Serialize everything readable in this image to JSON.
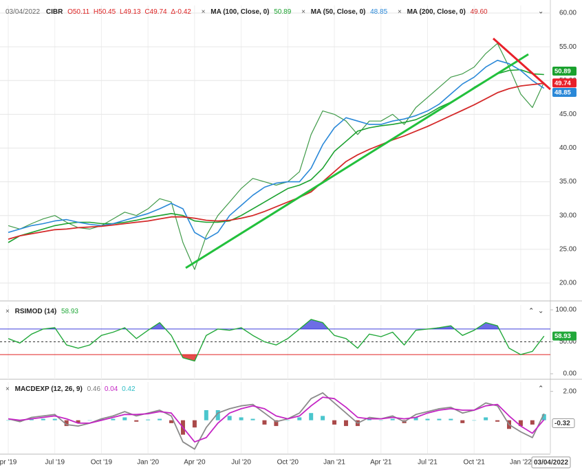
{
  "chart_data": [
    {
      "type": "line",
      "date": "03/04/2022",
      "symbol": "CIBR",
      "ohlc": [
        "O50.11",
        "H50.45",
        "L49.13",
        "C49.74",
        "Δ-0.42"
      ],
      "close_label": "49.74",
      "categories": [
        "pr '19",
        null,
        null,
        null,
        "Jul '19",
        null,
        null,
        null,
        "Oct '19",
        null,
        null,
        null,
        "Jan '20",
        null,
        null,
        null,
        "Apr '20",
        null,
        null,
        null,
        "Jul '20",
        null,
        null,
        null,
        "Oct '20",
        null,
        null,
        null,
        "Jan '21",
        null,
        null,
        null,
        "Apr '21",
        null,
        null,
        null,
        "Jul '21",
        null,
        null,
        null,
        "Oct '21",
        null,
        null,
        null,
        "Jan '22",
        null,
        "03/04/2022"
      ],
      "ylim": [
        17.45,
        61.12
      ],
      "yticks": [
        {
          "value": 20,
          "label": "20.00"
        },
        {
          "value": 25,
          "label": "25.00"
        },
        {
          "value": 30,
          "label": "30.00"
        },
        {
          "value": 35,
          "label": "35.00"
        },
        {
          "value": 40,
          "label": "40.00"
        },
        {
          "value": 45,
          "label": "45.00"
        },
        {
          "value": 50,
          "label": "50.00"
        },
        {
          "value": 55,
          "label": "55.00"
        },
        {
          "value": 60,
          "label": "60.00"
        }
      ],
      "grid": true,
      "series": [
        {
          "name": "CIBR",
          "color": "#3f9a48",
          "width": 1.2,
          "values": [
            28.5,
            28,
            28.8,
            29.5,
            30,
            29,
            28.2,
            28,
            28.5,
            29.5,
            30.5,
            30,
            31,
            32.5,
            32,
            26,
            22,
            27,
            30,
            32,
            34,
            35.5,
            35,
            34.5,
            35,
            36.5,
            42,
            45.5,
            45,
            44,
            42,
            44,
            44,
            45,
            43.5,
            46,
            47.5,
            49,
            50.5,
            51,
            52,
            54,
            55.5,
            52,
            48,
            46,
            49.74
          ]
        },
        {
          "name": "MA (100, Close, 0)",
          "last_label": "50.89",
          "color": "#1aa12e",
          "width": 1.6,
          "values": [
            26,
            27,
            27.5,
            28,
            28.5,
            28.8,
            29,
            29,
            28.8,
            28.8,
            29,
            29.3,
            29.7,
            30,
            30.3,
            30,
            29.2,
            29,
            29,
            29.2,
            30,
            31,
            32,
            33,
            34,
            34.5,
            35.3,
            37,
            39.5,
            41,
            42.5,
            43,
            43.3,
            43.5,
            43.8,
            44.2,
            45,
            46,
            46.8,
            47.8,
            49,
            50,
            51,
            51.5,
            51.6,
            51,
            50.89
          ]
        },
        {
          "name": "MA (50, Close, 0)",
          "last_label": "48.85",
          "color": "#2a88d8",
          "width": 1.6,
          "values": [
            27.5,
            28,
            28.5,
            28.8,
            29.2,
            29.4,
            29,
            28.7,
            28.5,
            28.8,
            29.3,
            29.8,
            30.3,
            31,
            31.8,
            31,
            27.5,
            26.5,
            27.5,
            30,
            31.5,
            33,
            34.2,
            34.8,
            35,
            35,
            37,
            40.5,
            43,
            44.5,
            44,
            43.5,
            43.5,
            44,
            44.3,
            44.8,
            45.5,
            46.5,
            48,
            49.5,
            50.5,
            52,
            53,
            52.5,
            51.5,
            50,
            48.85
          ]
        },
        {
          "name": "MA (200, Close, 0)",
          "last_label": "49.60",
          "color": "#d42a2a",
          "width": 1.8,
          "values": [
            26.5,
            27,
            27.3,
            27.6,
            27.9,
            28,
            28.2,
            28.3,
            28.4,
            28.6,
            28.8,
            29,
            29.2,
            29.5,
            29.8,
            29.8,
            29.6,
            29.3,
            29.2,
            29.3,
            29.6,
            30,
            30.6,
            31.3,
            32,
            32.7,
            33.5,
            35,
            36.5,
            38,
            39,
            39.8,
            40.5,
            41.2,
            41.8,
            42.5,
            43.2,
            44,
            44.8,
            45.6,
            46.4,
            47.3,
            48.2,
            48.8,
            49.2,
            49.4,
            49.6
          ]
        }
      ]
    },
    {
      "type": "line",
      "title": "RSIMOD (14)",
      "ylim": [
        -8.6,
        107.5
      ],
      "yticks": [
        {
          "value": 0,
          "label": "0.00"
        },
        {
          "value": 50,
          "label": "50.00"
        },
        {
          "value": 100,
          "label": "100.00"
        }
      ],
      "bands": {
        "upper": 70,
        "middle": 50,
        "lower": 30,
        "upper_color": "#3c3cdc",
        "lower_color": "#e02020"
      },
      "series": [
        {
          "last_label": "58.93",
          "color": "#22a83a",
          "width": 1.4,
          "values": [
            55,
            48,
            62,
            70,
            72,
            45,
            40,
            45,
            60,
            65,
            72,
            55,
            68,
            80,
            60,
            25,
            20,
            60,
            70,
            68,
            72,
            60,
            50,
            45,
            55,
            70,
            85,
            80,
            60,
            55,
            40,
            62,
            58,
            65,
            45,
            68,
            70,
            72,
            75,
            60,
            68,
            80,
            75,
            40,
            30,
            35,
            58.93
          ]
        }
      ]
    },
    {
      "type": "line",
      "title": "MACDEXP (12, 26, 9)",
      "ylim": [
        -2.3,
        2.65
      ],
      "yticks": [
        {
          "value": 2,
          "label": "2.00"
        }
      ],
      "annotation": "-0.32",
      "series": [
        {
          "kind": "line",
          "last_label": "0.46",
          "color": "#8a8a8a",
          "width": 1.8,
          "values": [
            0.1,
            -0.1,
            0.2,
            0.3,
            0.4,
            -0.3,
            -0.4,
            -0.2,
            0.1,
            0.3,
            0.6,
            0.3,
            0.5,
            0.7,
            0.3,
            -1.5,
            -2.0,
            -0.5,
            0.5,
            0.8,
            1,
            1.1,
            0.5,
            -0.1,
            0.1,
            0.5,
            1.5,
            1.9,
            1.2,
            0.5,
            -0.2,
            0.2,
            0.1,
            0.3,
            -0.1,
            0.4,
            0.6,
            0.8,
            0.9,
            0.5,
            0.7,
            1.2,
            1.0,
            -0.3,
            -0.8,
            -1.2,
            0.46
          ]
        },
        {
          "kind": "line",
          "last_label": "0.04",
          "color": "#c425c4",
          "width": 1.8,
          "values": [
            0.1,
            0,
            0.1,
            0.2,
            0.3,
            0.1,
            -0.2,
            -0.2,
            0,
            0.2,
            0.4,
            0.4,
            0.45,
            0.6,
            0.5,
            -0.5,
            -1.5,
            -1.2,
            -0.2,
            0.5,
            0.8,
            1,
            0.8,
            0.3,
            0.1,
            0.3,
            1.0,
            1.6,
            1.5,
            0.9,
            0.2,
            0.1,
            0.1,
            0.2,
            0.1,
            0.2,
            0.5,
            0.7,
            0.8,
            0.7,
            0.7,
            1.0,
            1.1,
            0.3,
            -0.4,
            -0.9,
            0.04
          ]
        },
        {
          "kind": "bar",
          "last_label": "0.42",
          "color": "#2bbcc4",
          "negative_color": "#9b2a2a",
          "values": [
            0,
            -0.1,
            0.1,
            0.1,
            0.1,
            -0.4,
            -0.2,
            0,
            0.1,
            0.1,
            0.2,
            -0.1,
            0.05,
            0.1,
            -0.2,
            -1.0,
            -0.5,
            0.7,
            0.7,
            0.3,
            0.2,
            0.1,
            -0.3,
            -0.4,
            0,
            0.2,
            0.5,
            0.3,
            -0.3,
            -0.4,
            -0.4,
            0.1,
            0,
            0.1,
            -0.2,
            0.2,
            0.1,
            0.1,
            0.1,
            -0.2,
            0,
            0.2,
            -0.1,
            -0.6,
            -0.4,
            -0.3,
            0.42
          ]
        }
      ]
    }
  ]
}
